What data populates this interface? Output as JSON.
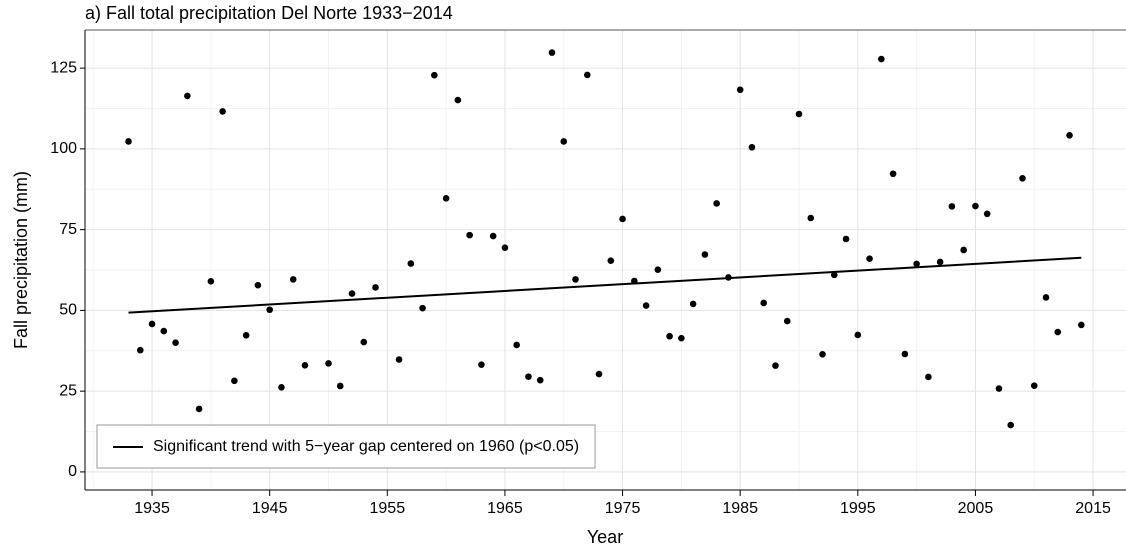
{
  "chart_data": {
    "type": "scatter",
    "title": "a) Fall total precipitation Del Norte 1933−2014",
    "x_label": "Year",
    "y_label": "Fall precipitation (mm)",
    "xlim": [
      1929.3,
      2017.8
    ],
    "ylim": [
      -5.6,
      136.8
    ],
    "xticks": [
      1935,
      1945,
      1955,
      1965,
      1975,
      1985,
      1995,
      2005,
      2015
    ],
    "yticks": [
      0,
      25,
      50,
      75,
      100,
      125
    ],
    "grid": true,
    "legend_position": "bottom-left",
    "points": {
      "color": "#000000",
      "x": [
        1933,
        1934,
        1935,
        1936,
        1937,
        1938,
        1939,
        1940,
        1941,
        1942,
        1943,
        1944,
        1945,
        1946,
        1947,
        1948,
        1950,
        1951,
        1952,
        1953,
        1954,
        1956,
        1957,
        1958,
        1959,
        1960,
        1961,
        1962,
        1963,
        1964,
        1965,
        1966,
        1967,
        1968,
        1969,
        1970,
        1971,
        1972,
        1973,
        1974,
        1975,
        1976,
        1977,
        1978,
        1979,
        1980,
        1981,
        1982,
        1983,
        1984,
        1985,
        1986,
        1987,
        1988,
        1989,
        1990,
        1991,
        1992,
        1993,
        1994,
        1995,
        1996,
        1997,
        1998,
        1999,
        2000,
        2001,
        2002,
        2003,
        2004,
        2005,
        2006,
        2007,
        2008,
        2009,
        2010,
        2011,
        2012,
        2013,
        2014
      ],
      "values": [
        102.3,
        37.7,
        45.8,
        43.6,
        40.0,
        116.4,
        19.5,
        59.0,
        111.6,
        28.2,
        42.3,
        57.8,
        50.2,
        26.2,
        59.6,
        33.0,
        33.6,
        26.6,
        55.2,
        40.2,
        57.1,
        34.8,
        64.5,
        50.7,
        122.8,
        84.7,
        115.1,
        73.3,
        33.2,
        73.0,
        69.4,
        39.3,
        29.5,
        28.4,
        129.8,
        102.3,
        59.6,
        122.9,
        30.3,
        65.4,
        78.3,
        59.1,
        51.5,
        62.6,
        42.0,
        41.4,
        52.0,
        67.3,
        83.1,
        60.2,
        118.3,
        100.5,
        52.3,
        32.9,
        46.7,
        110.8,
        78.6,
        36.4,
        61.0,
        72.1,
        42.4,
        66.0,
        127.8,
        92.3,
        36.5,
        64.4,
        29.4,
        65.0,
        82.2,
        68.7,
        82.3,
        79.9,
        25.8,
        14.5,
        90.9,
        26.7,
        54.0,
        43.3,
        104.2,
        45.5
      ]
    },
    "trend": {
      "name": "Significant trend with 5−year gap centered on 1960 (p<0.05)",
      "color": "#000000",
      "x": [
        1933,
        2014
      ],
      "values": [
        49.3,
        66.3
      ]
    }
  }
}
